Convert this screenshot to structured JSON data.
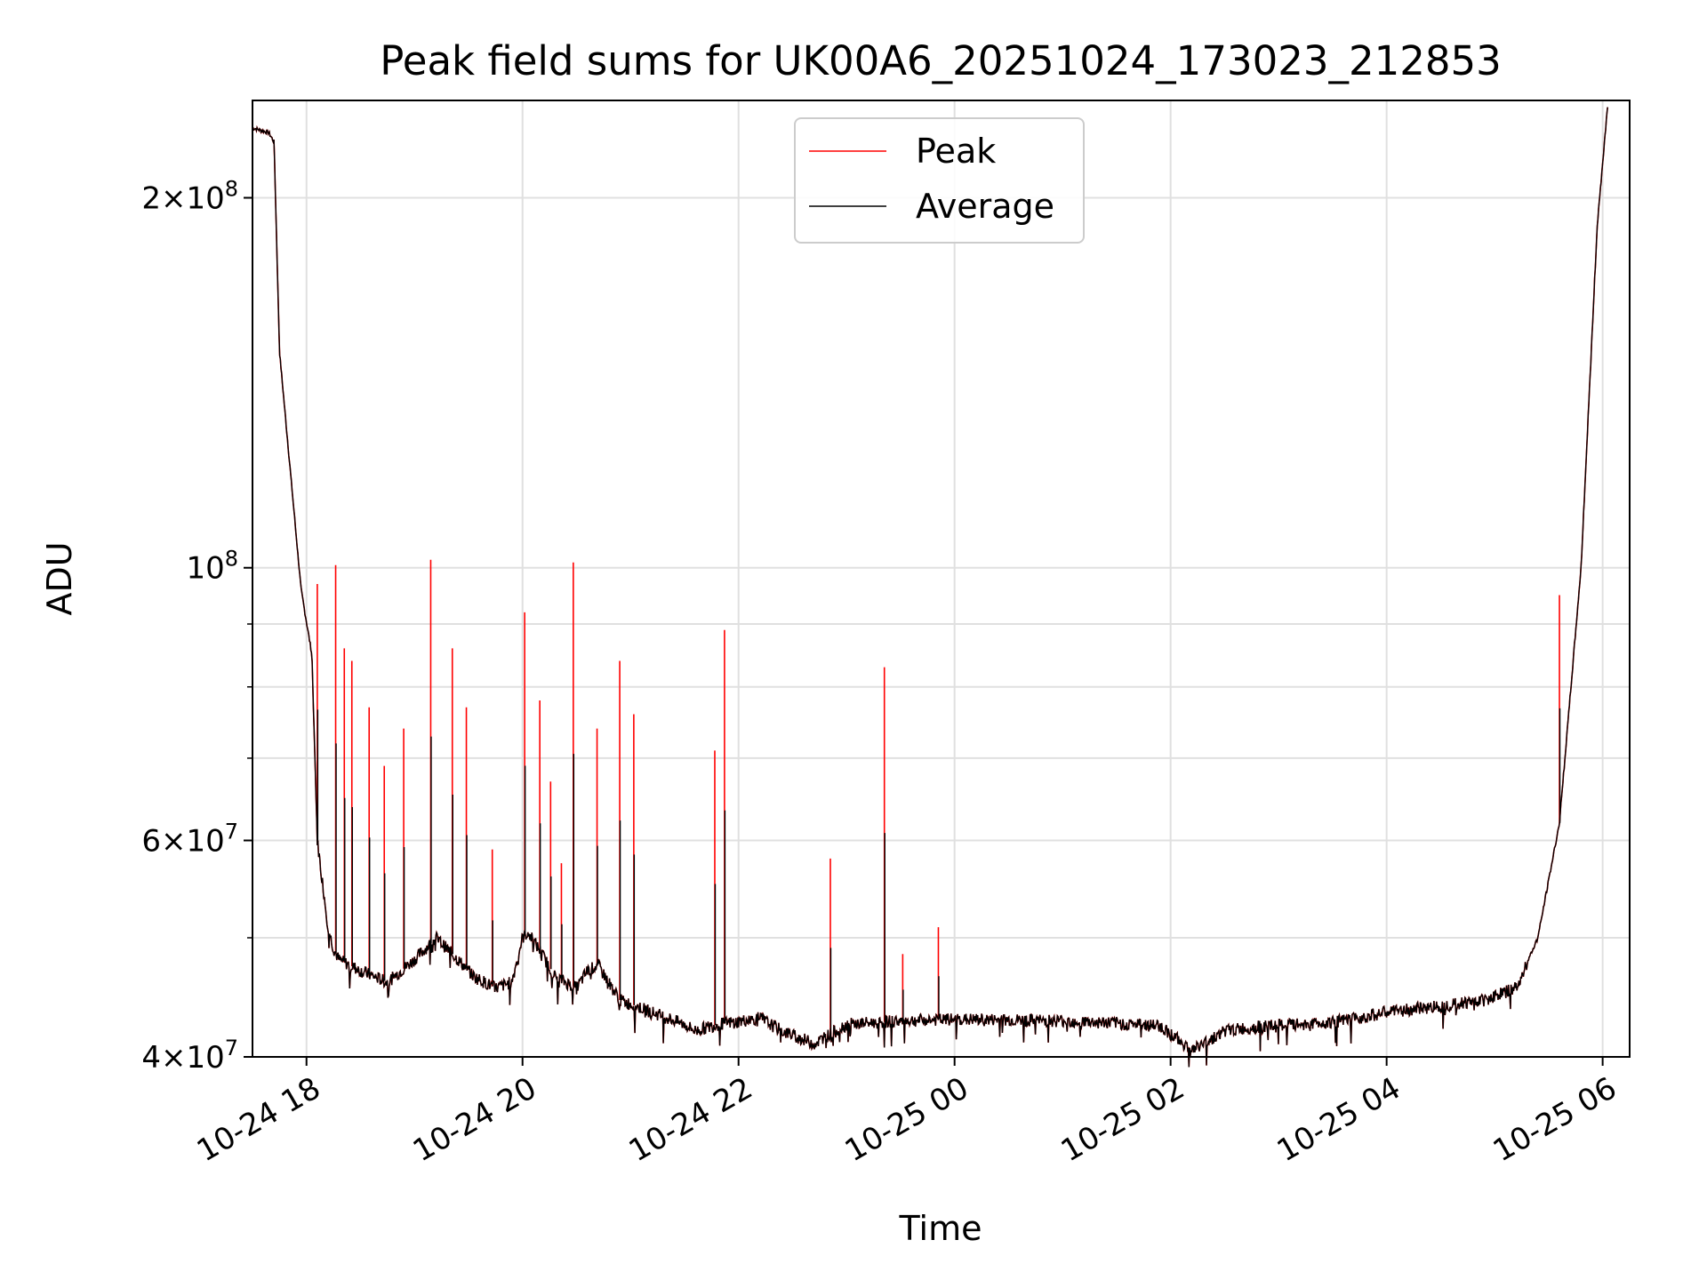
{
  "chart_data": {
    "type": "line",
    "title": "Peak field sums for UK00A6_20251024_173023_212853",
    "xlabel": "Time",
    "ylabel": "ADU",
    "yscale": "log",
    "xlim_hours": [
      -0.5,
      12.25
    ],
    "ylim": [
      40000000,
      240000000
    ],
    "x_reference": "2025-10-24 18:00",
    "x_ticks": [
      {
        "hours": 0,
        "label": "10-24 18"
      },
      {
        "hours": 2,
        "label": "10-24 20"
      },
      {
        "hours": 4,
        "label": "10-24 22"
      },
      {
        "hours": 6,
        "label": "10-25 00"
      },
      {
        "hours": 8,
        "label": "10-25 02"
      },
      {
        "hours": 10,
        "label": "10-25 04"
      },
      {
        "hours": 12,
        "label": "10-25 06"
      }
    ],
    "y_ticks_major": [
      {
        "value": 40000000,
        "base": "4",
        "exp": "7"
      },
      {
        "value": 60000000,
        "base": "6",
        "exp": "7"
      },
      {
        "value": 100000000,
        "base": "",
        "exp": "8"
      },
      {
        "value": 200000000,
        "base": "2",
        "exp": "8"
      }
    ],
    "y_ticks_minor": [
      50000000,
      70000000,
      80000000,
      90000000
    ],
    "grid": true,
    "legend": {
      "position": "upper center",
      "entries": [
        {
          "label": "Peak",
          "color": "#ff0000"
        },
        {
          "label": "Average",
          "color": "#000000"
        }
      ]
    },
    "series": [
      {
        "name": "Average",
        "color": "#000000",
        "x_hours": [
          -0.5,
          -0.35,
          -0.3,
          -0.25,
          -0.15,
          -0.05,
          0.05,
          0.1,
          0.2,
          0.25,
          0.3,
          0.5,
          0.75,
          1.0,
          1.2,
          1.4,
          1.55,
          1.75,
          1.9,
          2.0,
          2.05,
          2.15,
          2.3,
          2.5,
          2.6,
          2.7,
          2.9,
          3.2,
          3.5,
          3.6,
          3.8,
          4.2,
          4.4,
          4.7,
          5.0,
          5.5,
          6.0,
          7.0,
          7.5,
          7.9,
          8.2,
          8.5,
          8.8,
          9.2,
          9.6,
          10.0,
          10.5,
          10.9,
          11.2,
          11.4,
          11.6,
          11.8,
          11.95,
          12.05
        ],
        "values": [
          228000000,
          226000000,
          222000000,
          150000000,
          120000000,
          96000000,
          85000000,
          60000000,
          51000000,
          49000000,
          48000000,
          47000000,
          46000000,
          48000000,
          50000000,
          48000000,
          46500000,
          45500000,
          46000000,
          50000000,
          50500000,
          49000000,
          46500000,
          45500000,
          47000000,
          47500000,
          44500000,
          43500000,
          42500000,
          42000000,
          42500000,
          43000000,
          42000000,
          41000000,
          42500000,
          42800000,
          42900000,
          42800000,
          42600000,
          42400000,
          40500000,
          42000000,
          42300000,
          42500000,
          42800000,
          43500000,
          44000000,
          44500000,
          45500000,
          50000000,
          62000000,
          100000000,
          190000000,
          240000000
        ]
      },
      {
        "name": "Peak",
        "color": "#ff0000",
        "spikes": [
          {
            "x_hours": 0.1,
            "value": 97000000
          },
          {
            "x_hours": 0.27,
            "value": 100500000
          },
          {
            "x_hours": 0.35,
            "value": 86000000
          },
          {
            "x_hours": 0.42,
            "value": 84000000
          },
          {
            "x_hours": 0.58,
            "value": 77000000
          },
          {
            "x_hours": 0.72,
            "value": 69000000
          },
          {
            "x_hours": 0.9,
            "value": 74000000
          },
          {
            "x_hours": 1.15,
            "value": 101500000
          },
          {
            "x_hours": 1.35,
            "value": 86000000
          },
          {
            "x_hours": 1.48,
            "value": 77000000
          },
          {
            "x_hours": 1.72,
            "value": 59000000
          },
          {
            "x_hours": 2.02,
            "value": 92000000
          },
          {
            "x_hours": 2.16,
            "value": 78000000
          },
          {
            "x_hours": 2.26,
            "value": 67000000
          },
          {
            "x_hours": 2.36,
            "value": 57500000
          },
          {
            "x_hours": 2.47,
            "value": 101000000
          },
          {
            "x_hours": 2.69,
            "value": 74000000
          },
          {
            "x_hours": 2.9,
            "value": 84000000
          },
          {
            "x_hours": 3.03,
            "value": 76000000
          },
          {
            "x_hours": 3.78,
            "value": 71000000
          },
          {
            "x_hours": 3.87,
            "value": 89000000
          },
          {
            "x_hours": 4.85,
            "value": 58000000
          },
          {
            "x_hours": 5.35,
            "value": 83000000
          },
          {
            "x_hours": 5.52,
            "value": 48500000
          },
          {
            "x_hours": 5.85,
            "value": 51000000
          },
          {
            "x_hours": 11.6,
            "value": 95000000
          }
        ]
      }
    ]
  }
}
